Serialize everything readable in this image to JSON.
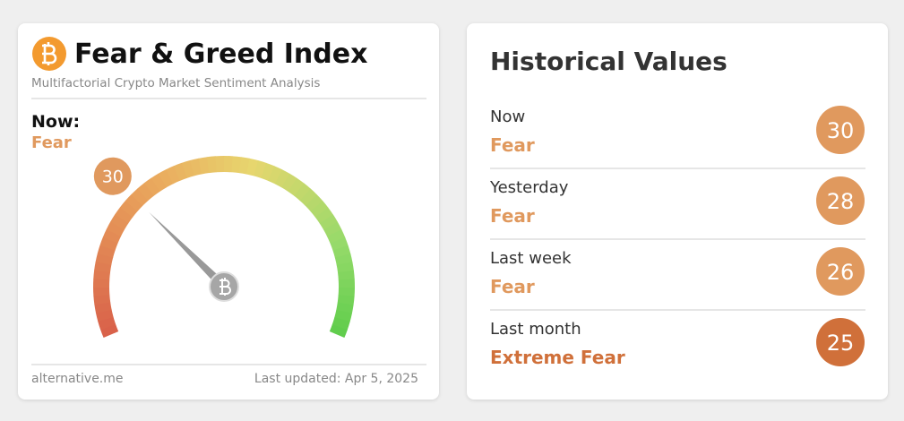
{
  "index_card": {
    "title": "Fear & Greed Index",
    "subtitle": "Multifactorial Crypto Market Sentiment Analysis",
    "now_label": "Now:",
    "now_classification": "Fear",
    "gauge": {
      "value": 30,
      "scale": [
        0,
        100
      ],
      "color": "#e0995e"
    },
    "source": "alternative.me",
    "last_updated": "Last updated: Apr 5, 2025"
  },
  "history_card": {
    "title": "Historical Values",
    "rows": [
      {
        "label": "Now",
        "classification": "Fear",
        "value": 30,
        "color": "#e0995e"
      },
      {
        "label": "Yesterday",
        "classification": "Fear",
        "value": 28,
        "color": "#e0995e"
      },
      {
        "label": "Last week",
        "classification": "Fear",
        "value": 26,
        "color": "#e0995e"
      },
      {
        "label": "Last month",
        "classification": "Extreme Fear",
        "value": 25,
        "color": "#d0703a"
      }
    ]
  }
}
